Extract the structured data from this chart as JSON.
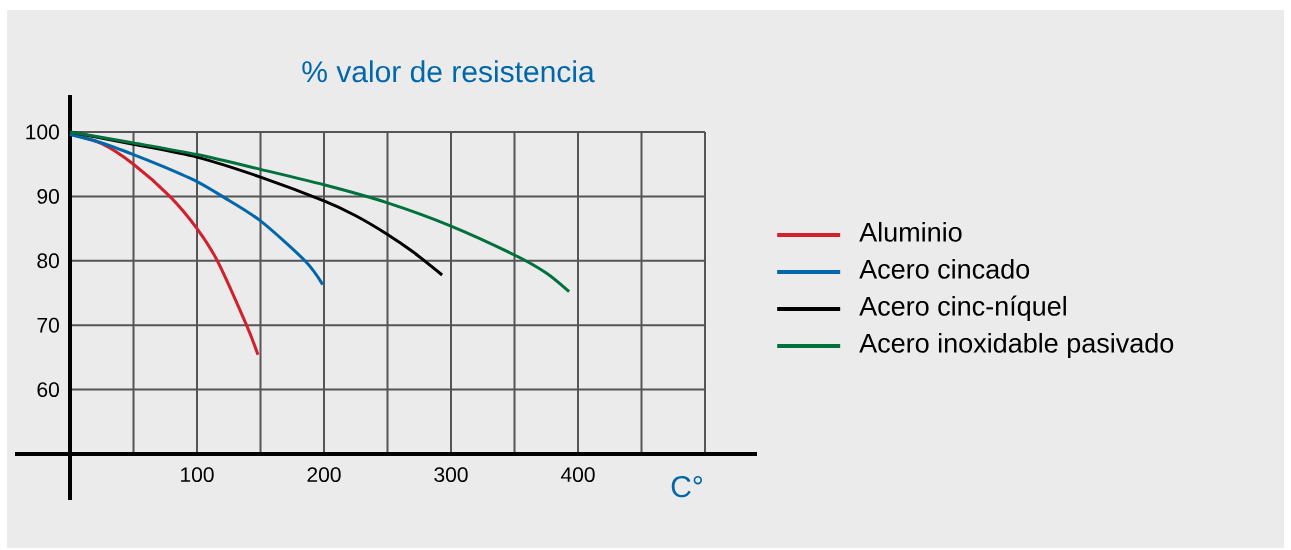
{
  "chart_data": {
    "type": "line",
    "title": "% valor de resistencia",
    "xlabel": "C°",
    "series": [
      {
        "name": "Aluminio",
        "color": "#d2202e",
        "x": [
          0,
          25,
          50,
          78.6,
          100,
          116,
          139,
          148
        ],
        "values": [
          99.7,
          98.2,
          95,
          90,
          85,
          80,
          70,
          65.4
        ]
      },
      {
        "name": "Acero cincado",
        "color": "#0067ac",
        "x": [
          0,
          25,
          50,
          75,
          100,
          120,
          150,
          185,
          199
        ],
        "values": [
          99.6,
          98.3,
          96.5,
          94.5,
          92.3,
          90,
          86.2,
          80,
          76.3
        ]
      },
      {
        "name": "Acero cinc-níquel",
        "color": "#000000",
        "x": [
          0,
          50,
          100,
          150,
          200,
          225,
          250,
          270,
          293
        ],
        "values": [
          100,
          98.1,
          96.1,
          93,
          89.3,
          87,
          84.1,
          81.4,
          77.8
        ]
      },
      {
        "name": "Acero inoxidable pasivado",
        "color": "#00703c",
        "x": [
          0,
          50,
          100,
          150,
          200,
          250,
          300,
          350,
          375,
          393
        ],
        "values": [
          100,
          98.3,
          96.5,
          94.2,
          91.8,
          89,
          85.4,
          80.9,
          78.1,
          75.2
        ]
      }
    ],
    "xlim": [
      0,
      500
    ],
    "ylim": [
      50,
      100
    ],
    "xticks": [
      {
        "value": 0,
        "label": null
      },
      {
        "value": 50,
        "label": null
      },
      100,
      {
        "value": 150,
        "label": null
      },
      200,
      {
        "value": 250,
        "label": null
      },
      300,
      {
        "value": 350,
        "label": null
      },
      400,
      {
        "value": 450,
        "label": null
      },
      {
        "value": 500,
        "label": null
      }
    ],
    "yticks": [
      {
        "value": 50,
        "label": null
      },
      60,
      70,
      80,
      90,
      100
    ],
    "grid": true,
    "legend": "right",
    "marker": "none",
    "line_style": "solid"
  }
}
